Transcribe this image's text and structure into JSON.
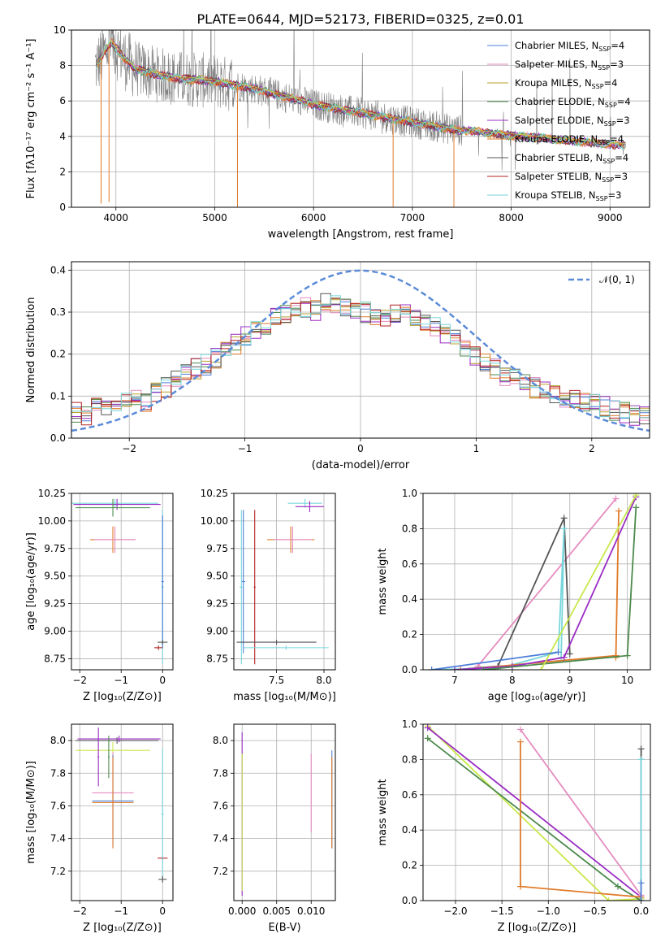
{
  "figure_title": "PLATE=0644, MJD=52173, FIBERID=0325, z=0.01",
  "colors": {
    "data": "#808080",
    "models": [
      "#4e7fd8",
      "#e58bbf",
      "#b8a12a",
      "#4c8a4c",
      "#9a2cc3",
      "#e07b2a",
      "#555555",
      "#b22222",
      "#78d6dc"
    ],
    "gauss": "#5b8bd8",
    "lime": "#c8e84a",
    "orange": "#e07b2a",
    "darkgreen": "#5c8a5c"
  },
  "chart_data": [
    {
      "type": "line",
      "id": "spectrum",
      "xlabel": "wavelength [Angstrom, rest frame]",
      "ylabel": "Flux [fλ10⁻¹⁷ erg cm⁻² s⁻¹ A⁻¹]",
      "xlim": [
        3550,
        9400
      ],
      "ylim": [
        0,
        10
      ],
      "xticks": [
        "4000",
        "5000",
        "6000",
        "7000",
        "8000",
        "9000"
      ],
      "xtick_values": [
        4000,
        5000,
        6000,
        7000,
        8000,
        9000
      ],
      "yticks": [
        "0",
        "2",
        "4",
        "6",
        "8",
        "10"
      ],
      "ytick_values": [
        0,
        2,
        4,
        6,
        8,
        10
      ],
      "continuum": {
        "x": [
          3800,
          3850,
          3900,
          3950,
          4000,
          4100,
          4200,
          4400,
          4600,
          4800,
          5000,
          5200,
          5400,
          5600,
          5800,
          6000,
          6200,
          6400,
          6600,
          6800,
          7000,
          7200,
          7400,
          7600,
          7800,
          8000,
          8200,
          8400,
          8600,
          8800,
          9000,
          9150
        ],
        "y": [
          8.0,
          8.4,
          8.9,
          9.3,
          9.0,
          8.3,
          7.8,
          7.5,
          7.3,
          7.2,
          7.1,
          6.9,
          6.7,
          6.4,
          6.1,
          5.8,
          5.6,
          5.4,
          5.2,
          5.0,
          4.8,
          4.6,
          4.4,
          4.3,
          4.15,
          4.05,
          3.95,
          3.85,
          3.75,
          3.65,
          3.55,
          3.5
        ]
      },
      "dips": [
        {
          "x": 3850,
          "y": 0.2
        },
        {
          "x": 3930,
          "y": 0.3
        },
        {
          "x": 5230,
          "y": 0.0
        },
        {
          "x": 6805,
          "y": 0.0
        },
        {
          "x": 7420,
          "y": 0.0
        }
      ],
      "legend": {
        "placement": "upper right",
        "entries": [
          {
            "label": "Chabrier MILES, N",
            "n": "4"
          },
          {
            "label": "Salpeter MILES, N",
            "n": "3"
          },
          {
            "label": "Kroupa MILES, N",
            "n": "4"
          },
          {
            "label": "Chabrier ELODIE, N",
            "n": "4"
          },
          {
            "label": "Salpeter ELODIE, N",
            "n": "3"
          },
          {
            "label": "Kroupa ELODIE, N",
            "n": "4"
          },
          {
            "label": "Chabrier STELIB, N",
            "n": "4"
          },
          {
            "label": "Salpeter STELIB, N",
            "n": "3"
          },
          {
            "label": "Kroupa STELIB, N",
            "n": "3"
          }
        ],
        "subscript": "SSP"
      }
    },
    {
      "type": "line",
      "id": "residuals",
      "xlabel": "(data-model)/error",
      "ylabel": "Normed distribution",
      "xlim": [
        -2.5,
        2.5
      ],
      "ylim": [
        0,
        0.42
      ],
      "xticks": [
        "−2",
        "−1",
        "0",
        "1",
        "2"
      ],
      "xtick_values": [
        -2,
        -1,
        0,
        1,
        2
      ],
      "yticks": [
        "0.0",
        "0.1",
        "0.2",
        "0.3",
        "0.4"
      ],
      "ytick_values": [
        0,
        0.1,
        0.2,
        0.3,
        0.4
      ],
      "gauss_label": "𝒩(0, 1)",
      "hist_base": [
        0.06,
        0.055,
        0.075,
        0.08,
        0.085,
        0.09,
        0.095,
        0.085,
        0.11,
        0.12,
        0.14,
        0.15,
        0.165,
        0.175,
        0.19,
        0.215,
        0.225,
        0.245,
        0.26,
        0.27,
        0.29,
        0.295,
        0.3,
        0.31,
        0.305,
        0.32,
        0.315,
        0.31,
        0.305,
        0.3,
        0.295,
        0.29,
        0.3,
        0.295,
        0.29,
        0.28,
        0.265,
        0.25,
        0.235,
        0.21,
        0.195,
        0.18,
        0.165,
        0.15,
        0.14,
        0.13,
        0.12,
        0.11,
        0.1,
        0.095,
        0.09,
        0.085,
        0.08,
        0.075,
        0.065,
        0.06,
        0.055,
        0.05
      ]
    },
    {
      "type": "scatter",
      "id": "age-vs-Z",
      "xlabel": "Z [log₁₀(Z/Z⊙)]",
      "ylabel": "age  [log₁₀(age/yr)]",
      "xlim": [
        -2.2,
        0.25
      ],
      "ylim": [
        8.65,
        10.25
      ],
      "xticks": [
        "−2",
        "−1",
        "0"
      ],
      "xtick_values": [
        -2,
        -1,
        0
      ],
      "yticks": [
        "8.75",
        "9.00",
        "9.25",
        "9.50",
        "9.75",
        "10.00",
        "10.25"
      ],
      "ytick_values": [
        8.75,
        9.0,
        9.25,
        9.5,
        9.75,
        10.0,
        10.25
      ],
      "points": [
        {
          "x": -1.15,
          "y": 10.16,
          "xe": 1.05,
          "ye": 0.04,
          "c": 8
        },
        {
          "x": -1.1,
          "y": 10.15,
          "xe": 1.05,
          "ye": 0.05,
          "c": 4
        },
        {
          "x": -1.2,
          "y": 10.12,
          "xe": 0.9,
          "ye": 0.08,
          "c": 3
        },
        {
          "x": -1.2,
          "y": 9.83,
          "xe": 0.55,
          "ye": 0.12,
          "c": 5
        },
        {
          "x": -1.15,
          "y": 9.83,
          "xe": 0.5,
          "ye": 0.12,
          "c": 1
        },
        {
          "x": 0.0,
          "y": 9.4,
          "xe": 0.03,
          "ye": 0.7,
          "c": 8
        },
        {
          "x": 0.0,
          "y": 9.45,
          "xe": 0.03,
          "ye": 0.6,
          "c": 0
        },
        {
          "x": 0.0,
          "y": 8.9,
          "xe": 0.12,
          "ye": 0.02,
          "c": 6
        },
        {
          "x": -0.1,
          "y": 8.85,
          "xe": 0.1,
          "ye": 0.02,
          "c": 7
        }
      ]
    },
    {
      "type": "scatter",
      "id": "age-vs-mass",
      "xlabel": "mass [log₁₀(M/M⊙)]",
      "ylabel": "",
      "xlim": [
        7.05,
        8.12
      ],
      "ylim": [
        8.65,
        10.25
      ],
      "xticks": [
        "7.5",
        "8.0"
      ],
      "xtick_values": [
        7.5,
        8.0
      ],
      "yticks": [
        "8.75",
        "9.00",
        "9.25",
        "9.50",
        "9.75",
        "10.00",
        "10.25"
      ],
      "ytick_values": [
        8.75,
        9.0,
        9.25,
        9.5,
        9.75,
        10.0,
        10.25
      ],
      "points": [
        {
          "x": 7.8,
          "y": 10.16,
          "xe": 0.18,
          "ye": 0.04,
          "c": 8
        },
        {
          "x": 7.85,
          "y": 10.13,
          "xe": 0.15,
          "ye": 0.05,
          "c": 4
        },
        {
          "x": 7.65,
          "y": 9.83,
          "xe": 0.25,
          "ye": 0.12,
          "c": 5
        },
        {
          "x": 7.67,
          "y": 9.83,
          "xe": 0.2,
          "ye": 0.12,
          "c": 1
        },
        {
          "x": 7.15,
          "y": 9.45,
          "xe": 0.02,
          "ye": 0.65,
          "c": 0
        },
        {
          "x": 7.13,
          "y": 9.4,
          "xe": 0.02,
          "ye": 0.7,
          "c": 8
        },
        {
          "x": 7.27,
          "y": 9.4,
          "xe": 0.01,
          "ye": 0.7,
          "c": 7
        },
        {
          "x": 7.5,
          "y": 8.9,
          "xe": 0.42,
          "ye": 0.02,
          "c": 6
        },
        {
          "x": 7.6,
          "y": 8.85,
          "xe": 0.45,
          "ye": 0.02,
          "c": 8
        }
      ]
    },
    {
      "type": "line",
      "id": "massweight-vs-age",
      "xlabel": "age  [log₁₀(age/yr)]",
      "ylabel": "mass weight",
      "xlim": [
        6.45,
        10.4
      ],
      "ylim": [
        0,
        1.0
      ],
      "xticks": [
        "7",
        "8",
        "9",
        "10"
      ],
      "xtick_values": [
        7,
        8,
        9,
        10
      ],
      "yticks": [
        "0.0",
        "0.2",
        "0.4",
        "0.6",
        "0.8",
        "1.0"
      ],
      "ytick_values": [
        0,
        0.2,
        0.4,
        0.6,
        0.8,
        1.0
      ],
      "series": [
        {
          "c": 1,
          "x": [
            7.4,
            9.8
          ],
          "y": [
            0.02,
            0.97
          ]
        },
        {
          "c": 6,
          "x": [
            7.0,
            7.75,
            8.9,
            9.0
          ],
          "y": [
            0.0,
            0.02,
            0.86,
            0.09
          ]
        },
        {
          "c": 8,
          "x": [
            6.6,
            7.8,
            8.8,
            8.9,
            8.85
          ],
          "y": [
            0.0,
            0.01,
            0.1,
            0.8,
            0.07
          ]
        },
        {
          "c": 5,
          "x": [
            7.1,
            9.8,
            9.85,
            9.8
          ],
          "y": [
            0.0,
            0.08,
            0.9,
            0.07
          ]
        },
        {
          "c": 4,
          "x": [
            7.0,
            8.0,
            8.9,
            10.15
          ],
          "y": [
            0.0,
            0.02,
            0.07,
            0.98
          ]
        },
        {
          "c": 3,
          "x": [
            7.5,
            10.0,
            10.15
          ],
          "y": [
            0.0,
            0.08,
            0.92
          ]
        },
        {
          "c": 9,
          "x": [
            8.5,
            10.15
          ],
          "y": [
            0.0,
            0.99
          ]
        },
        {
          "c": 0,
          "x": [
            6.6,
            8.8
          ],
          "y": [
            0.0,
            0.1
          ]
        }
      ]
    },
    {
      "type": "scatter",
      "id": "mass-vs-Z",
      "xlabel": "Z [log₁₀(Z/Z⊙)]",
      "ylabel": "mass [log₁₀(M/M⊙)]",
      "xlim": [
        -2.2,
        0.25
      ],
      "ylim": [
        7.02,
        8.1
      ],
      "xticks": [
        "−2",
        "−1",
        "0"
      ],
      "xtick_values": [
        -2,
        -1,
        0
      ],
      "yticks": [
        "7.2",
        "7.4",
        "7.6",
        "7.8",
        "8.0"
      ],
      "ytick_values": [
        7.2,
        7.4,
        7.6,
        7.8,
        8.0
      ],
      "points": [
        {
          "x": -1.1,
          "y": 8.0,
          "xe": 1.0,
          "ye": 0.02,
          "c": 6
        },
        {
          "x": -1.05,
          "y": 8.01,
          "xe": 1.0,
          "ye": 0.02,
          "c": 4
        },
        {
          "x": -1.2,
          "y": 7.94,
          "xe": 0.9,
          "ye": 0.05,
          "c": 9
        },
        {
          "x": -1.55,
          "y": 7.9,
          "xe": 0.02,
          "ye": 0.18,
          "c": 4
        },
        {
          "x": -1.3,
          "y": 7.9,
          "xe": 0.02,
          "ye": 0.13,
          "c": 3
        },
        {
          "x": -1.2,
          "y": 7.68,
          "xe": 0.5,
          "ye": 0.25,
          "c": 1
        },
        {
          "x": -1.2,
          "y": 7.63,
          "xe": 0.5,
          "ye": 0.28,
          "c": 0
        },
        {
          "x": -1.2,
          "y": 7.62,
          "xe": 0.5,
          "ye": 0.28,
          "c": 5
        },
        {
          "x": 0.0,
          "y": 7.28,
          "xe": 0.12,
          "ye": 0.01,
          "c": 7
        },
        {
          "x": 0.0,
          "y": 7.55,
          "xe": 0.03,
          "ye": 0.4,
          "c": 8
        },
        {
          "x": 0.0,
          "y": 7.15,
          "xe": 0.1,
          "ye": 0.02,
          "c": 6
        }
      ]
    },
    {
      "type": "scatter",
      "id": "mass-vs-EBV",
      "xlabel": "E(B-V)",
      "ylabel": "",
      "xlim": [
        -0.0012,
        0.0135
      ],
      "ylim": [
        7.02,
        8.1
      ],
      "xticks": [
        "0.000",
        "0.005",
        "0.010"
      ],
      "xtick_values": [
        0,
        0.005,
        0.01
      ],
      "yticks": [
        "7.2",
        "7.4",
        "7.6",
        "7.8",
        "8.0"
      ],
      "ytick_values": [
        7.2,
        7.4,
        7.6,
        7.8,
        8.0
      ],
      "points": [
        {
          "x": 0.0,
          "y": 7.55,
          "xe": 0.0,
          "ye": 0.5,
          "c": 4
        },
        {
          "x": 0.0,
          "y": 7.5,
          "xe": 0.0,
          "ye": 0.42,
          "c": 9
        },
        {
          "x": 0.01,
          "y": 7.68,
          "xe": 0.0,
          "ye": 0.24,
          "c": 1
        },
        {
          "x": 0.013,
          "y": 7.64,
          "xe": 0.0,
          "ye": 0.3,
          "c": 0
        },
        {
          "x": 0.013,
          "y": 7.62,
          "xe": 0.0,
          "ye": 0.28,
          "c": 5
        }
      ]
    },
    {
      "type": "line",
      "id": "massweight-vs-Z",
      "xlabel": "Z [log₁₀(Z/Z⊙)]",
      "ylabel": "mass weight",
      "xlim": [
        -2.35,
        0.1
      ],
      "ylim": [
        0,
        1.0
      ],
      "xticks": [
        "−2.0",
        "−1.5",
        "−1.0",
        "−0.5",
        "0.0"
      ],
      "xtick_values": [
        -2.0,
        -1.5,
        -1.0,
        -0.5,
        0.0
      ],
      "yticks": [
        "0.0",
        "0.2",
        "0.4",
        "0.6",
        "0.8",
        "1.0"
      ],
      "ytick_values": [
        0,
        0.2,
        0.4,
        0.6,
        0.8,
        1.0
      ],
      "series": [
        {
          "c": 9,
          "x": [
            -2.3,
            -0.35,
            0.0
          ],
          "y": [
            0.99,
            0.0,
            0.01
          ]
        },
        {
          "c": 3,
          "x": [
            -2.3,
            -0.25,
            0.0
          ],
          "y": [
            0.92,
            0.08,
            0.0
          ]
        },
        {
          "c": 4,
          "x": [
            -2.3,
            0.0
          ],
          "y": [
            0.98,
            0.02
          ]
        },
        {
          "c": 1,
          "x": [
            -1.3,
            0.0
          ],
          "y": [
            0.97,
            0.03
          ]
        },
        {
          "c": 5,
          "x": [
            -1.3,
            -1.3,
            0.0
          ],
          "y": [
            0.9,
            0.08,
            0.02
          ]
        },
        {
          "c": 6,
          "x": [
            0.0,
            0.0
          ],
          "y": [
            0.86,
            0.0
          ]
        },
        {
          "c": 8,
          "x": [
            0.0,
            0.0
          ],
          "y": [
            0.8,
            0.0
          ]
        },
        {
          "c": 0,
          "x": [
            0.0,
            0.0
          ],
          "y": [
            0.1,
            0.0
          ]
        }
      ]
    }
  ]
}
